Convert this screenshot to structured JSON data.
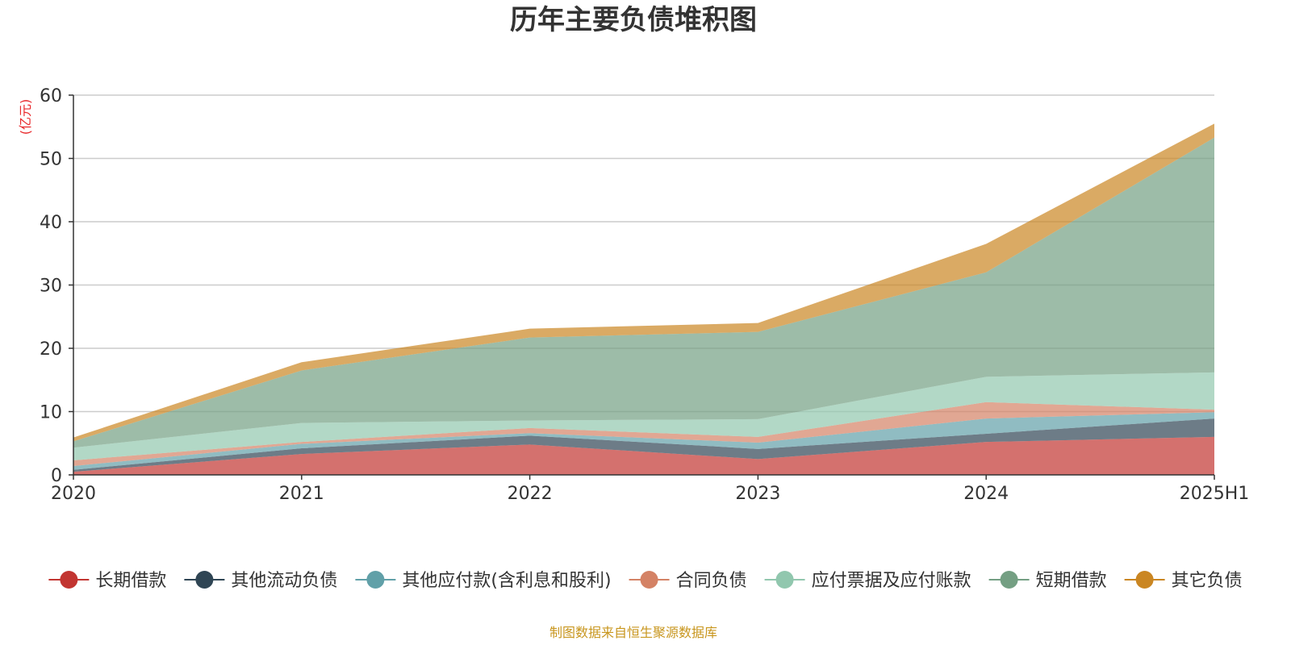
{
  "chart_data": {
    "type": "area",
    "stacked": true,
    "title": "历年主要负债堆积图",
    "unit": "(亿元)",
    "source": "制图数据来自恒生聚源数据库",
    "x": [
      "2020",
      "2021",
      "2022",
      "2023",
      "2024",
      "2025H1"
    ],
    "ylim": [
      0,
      60
    ],
    "yticks": [
      0,
      10,
      20,
      30,
      40,
      50,
      60
    ],
    "grid": true,
    "legend_position": "bottom",
    "series": [
      {
        "name": "长期借款",
        "color": "#c23531",
        "values": [
          0.5,
          3.3,
          4.8,
          2.5,
          5.2,
          6.0
        ]
      },
      {
        "name": "其他流动负债",
        "color": "#2f4554",
        "values": [
          0.3,
          0.9,
          1.4,
          1.6,
          1.3,
          2.9
        ]
      },
      {
        "name": "其他应付款(含利息和股利)",
        "color": "#61a0a8",
        "values": [
          0.6,
          0.7,
          0.4,
          1.0,
          2.4,
          1.0
        ]
      },
      {
        "name": "合同负债",
        "color": "#d48265",
        "values": [
          0.9,
          0.3,
          0.8,
          0.9,
          2.6,
          0.4
        ]
      },
      {
        "name": "应付票据及应付账款",
        "color": "#91c7ae",
        "values": [
          2.0,
          3.0,
          1.2,
          2.8,
          4.0,
          5.9
        ]
      },
      {
        "name": "短期借款",
        "color": "#749f83",
        "values": [
          1.0,
          8.3,
          13.1,
          13.8,
          16.5,
          37.1
        ]
      },
      {
        "name": "其它负债",
        "color": "#ca8622",
        "values": [
          0.6,
          1.3,
          1.4,
          1.4,
          4.5,
          2.2
        ]
      }
    ]
  }
}
